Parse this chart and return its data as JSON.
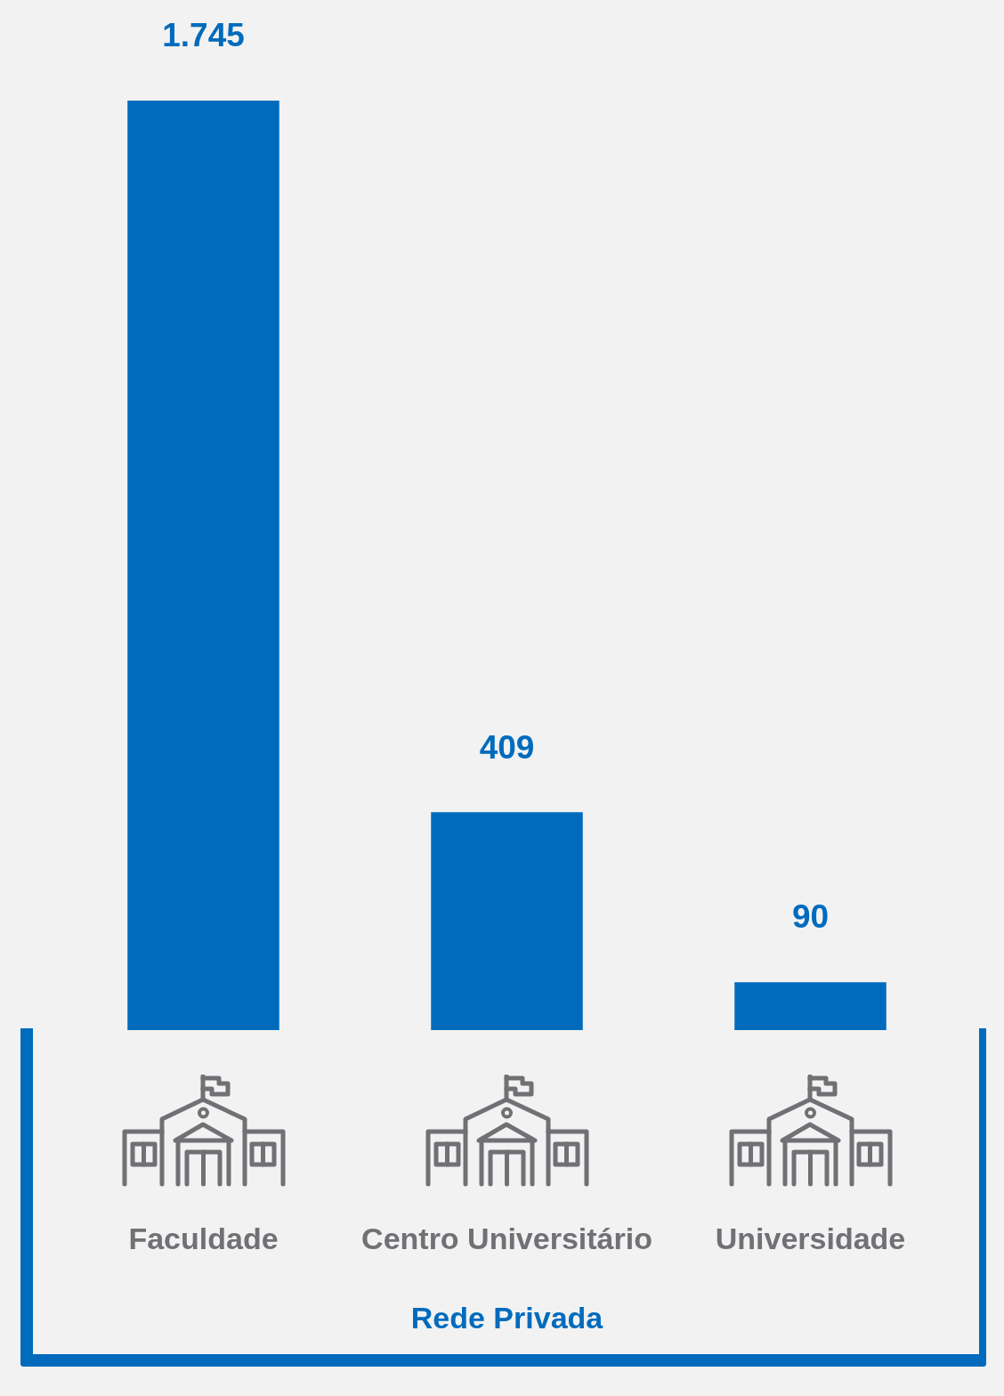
{
  "chart_data": {
    "type": "bar",
    "xlabel": "Rede Privada",
    "categories": [
      "Faculdade",
      "Centro Universitário",
      "Universidade"
    ],
    "values": [
      1745,
      409,
      90
    ],
    "value_labels": [
      "1.745",
      "409",
      "90"
    ],
    "color": "#006bbd"
  }
}
